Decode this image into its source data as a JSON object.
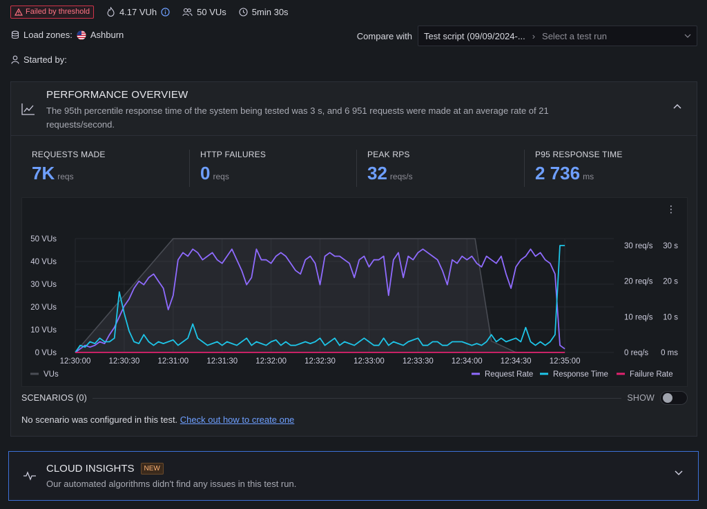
{
  "header": {
    "failed_badge": "Failed by threshold",
    "vuh": "4.17 VUh",
    "vus": "50 VUs",
    "duration": "5min 30s",
    "load_zones_label": "Load zones:",
    "load_zone": "Ashburn",
    "started_by_label": "Started by:",
    "compare_label": "Compare with",
    "compare_selected": "Test script (09/09/2024-...",
    "compare_placeholder": "Select a test run"
  },
  "performance": {
    "title": "PERFORMANCE OVERVIEW",
    "description": "The 95th percentile response time of the system being tested was 3 s, and 6 951 requests were made at an average rate of 21 requests/second.",
    "stats": [
      {
        "label": "REQUESTS MADE",
        "value": "7K",
        "unit": "reqs"
      },
      {
        "label": "HTTP FAILURES",
        "value": "0",
        "unit": "reqs"
      },
      {
        "label": "PEAK RPS",
        "value": "32",
        "unit": "reqs/s"
      },
      {
        "label": "P95 RESPONSE TIME",
        "value": "2 736",
        "unit": "ms"
      }
    ]
  },
  "scenarios": {
    "title": "SCENARIOS (0)",
    "show_label": "SHOW",
    "empty_text": "No scenario was configured in this test.",
    "link_text": "Check out how to create one"
  },
  "insights": {
    "title": "CLOUD INSIGHTS",
    "badge": "NEW",
    "description": "Our automated algorithms didn't find any issues in this test run."
  },
  "colors": {
    "vus": "#4a4d55",
    "request_rate": "#8f6bff",
    "response_time": "#1ec5e8",
    "failure_rate": "#e0226e",
    "accent": "#6e9fff"
  },
  "chart_data": {
    "type": "line",
    "x_ticks": [
      "12:30:00",
      "12:30:30",
      "12:31:00",
      "12:31:30",
      "12:32:00",
      "12:32:30",
      "12:33:00",
      "12:33:30",
      "12:34:00",
      "12:34:30",
      "12:35:00"
    ],
    "x_range_seconds": [
      0,
      330
    ],
    "left_axis": {
      "ticks": [
        "0 VUs",
        "10 VUs",
        "20 VUs",
        "30 VUs",
        "40 VUs",
        "50 VUs"
      ],
      "range": [
        0,
        50
      ]
    },
    "right_axis_rate": {
      "ticks": [
        "0 req/s",
        "10 req/s",
        "20 req/s",
        "30 req/s"
      ],
      "range": [
        0,
        30
      ]
    },
    "right_axis_time": {
      "ticks": [
        "0 ms",
        "10 s",
        "20 s",
        "30 s"
      ],
      "range": [
        0,
        30
      ]
    },
    "legend_left": [
      "VUs"
    ],
    "legend_right": [
      "Request Rate",
      "Response Time",
      "Failure Rate"
    ],
    "series": [
      {
        "name": "VUs",
        "x": [
          0,
          60,
          240,
          245,
          255,
          270,
          300
        ],
        "y": [
          0,
          50,
          50,
          50,
          5,
          0,
          0
        ]
      },
      {
        "name": "Request Rate",
        "x": [
          0,
          3,
          6,
          9,
          12,
          15,
          18,
          21,
          24,
          27,
          30,
          33,
          36,
          39,
          42,
          45,
          48,
          51,
          54,
          57,
          60,
          63,
          66,
          69,
          72,
          75,
          78,
          81,
          84,
          87,
          90,
          93,
          96,
          99,
          102,
          105,
          108,
          111,
          114,
          117,
          120,
          123,
          126,
          129,
          132,
          135,
          138,
          141,
          144,
          147,
          150,
          153,
          156,
          159,
          162,
          165,
          168,
          171,
          174,
          177,
          180,
          183,
          186,
          189,
          192,
          195,
          198,
          201,
          204,
          207,
          210,
          213,
          216,
          219,
          222,
          225,
          228,
          231,
          234,
          237,
          240,
          243,
          246,
          249,
          252,
          255,
          258,
          261,
          264,
          267,
          270,
          273,
          276,
          279,
          282,
          285,
          288,
          291,
          294,
          297,
          300
        ],
        "y": [
          0,
          1,
          2,
          1.5,
          2,
          3,
          2.5,
          5,
          7,
          10,
          13,
          15,
          18,
          20,
          19,
          21,
          22,
          20,
          18,
          12,
          16,
          26,
          28,
          27,
          29,
          28,
          26,
          27,
          28,
          26,
          25,
          27,
          29,
          26,
          23,
          19,
          21,
          29,
          26,
          26,
          25,
          27,
          28,
          27,
          25,
          23,
          22,
          26,
          27,
          25,
          19,
          27,
          28,
          27,
          27,
          26,
          25,
          21,
          26,
          27,
          24,
          26,
          26,
          27,
          16,
          26,
          28,
          21,
          27,
          26,
          28,
          29,
          28,
          27,
          26,
          23,
          19,
          26,
          25,
          27,
          26,
          27,
          25,
          24,
          27,
          26,
          25,
          27,
          22,
          18,
          24,
          26,
          27,
          29,
          27,
          28,
          26,
          25,
          22,
          2,
          1
        ]
      },
      {
        "name": "Response Time",
        "x": [
          0,
          3,
          6,
          9,
          12,
          15,
          18,
          21,
          24,
          27,
          30,
          33,
          36,
          39,
          42,
          45,
          48,
          51,
          54,
          57,
          60,
          63,
          66,
          69,
          72,
          75,
          78,
          81,
          84,
          87,
          90,
          93,
          96,
          99,
          102,
          105,
          108,
          111,
          114,
          117,
          120,
          123,
          126,
          129,
          132,
          135,
          138,
          141,
          144,
          147,
          150,
          153,
          156,
          159,
          162,
          165,
          168,
          171,
          174,
          177,
          180,
          183,
          186,
          189,
          192,
          195,
          198,
          201,
          204,
          207,
          210,
          213,
          216,
          219,
          222,
          225,
          228,
          231,
          234,
          237,
          240,
          243,
          246,
          249,
          252,
          255,
          258,
          261,
          264,
          267,
          270,
          273,
          276,
          279,
          282,
          285,
          288,
          291,
          294,
          297,
          300
        ],
        "y": [
          0,
          2,
          1.5,
          3,
          2.5,
          4,
          3,
          3,
          4,
          17,
          11,
          6,
          3,
          2.5,
          5,
          3,
          2,
          3,
          2.5,
          3,
          3.5,
          2,
          3,
          4,
          8,
          4,
          3,
          2,
          2.5,
          3,
          2,
          3,
          2.5,
          2,
          3,
          4,
          2,
          3,
          2.5,
          2,
          3,
          3.5,
          2,
          3,
          2,
          2,
          2.5,
          3,
          2.5,
          3,
          4,
          2,
          3,
          4,
          2,
          3,
          2.5,
          2,
          3,
          4,
          3,
          2,
          2,
          4,
          2,
          3,
          2.5,
          2,
          3,
          3.5,
          4,
          2,
          2,
          3,
          3,
          2,
          2,
          3,
          3,
          3,
          2.5,
          2,
          2.5,
          2,
          3,
          5,
          3,
          4,
          3,
          3.5,
          4,
          3,
          7,
          3,
          2,
          3,
          2,
          3,
          5,
          30,
          30
        ]
      },
      {
        "name": "Failure Rate",
        "x": [
          0,
          300
        ],
        "y": [
          0,
          0
        ]
      }
    ]
  }
}
